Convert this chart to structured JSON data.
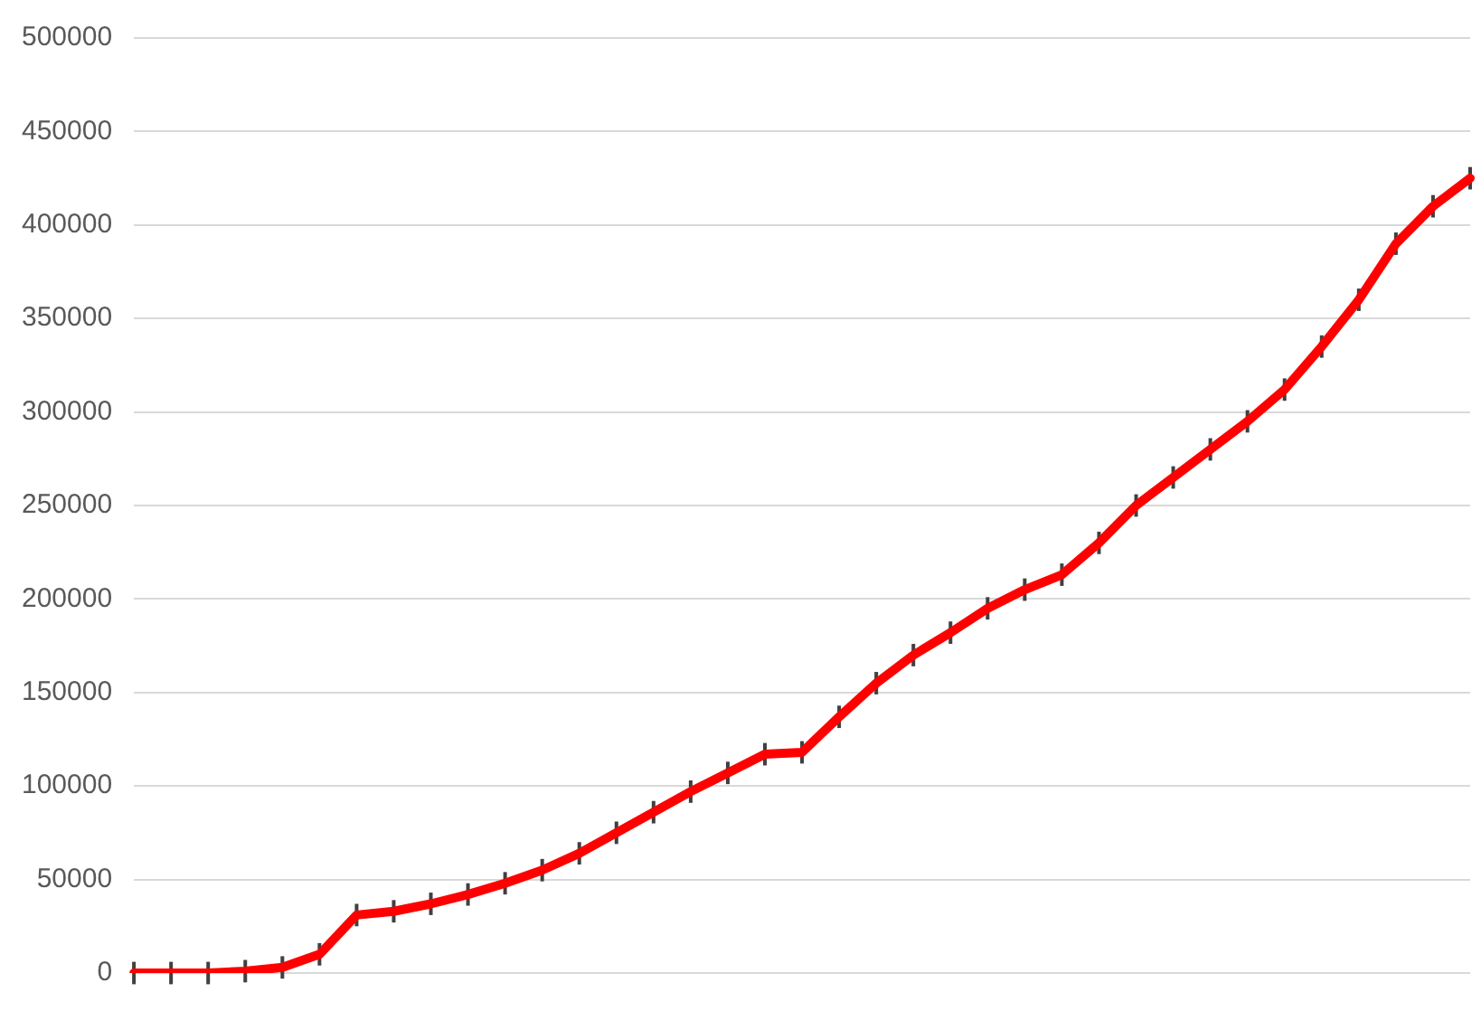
{
  "chart_data": {
    "type": "line",
    "categories": [
      null,
      null,
      null,
      null,
      null,
      null,
      null,
      null,
      null,
      null,
      null,
      null,
      null,
      null,
      null,
      null,
      null,
      null,
      null,
      null,
      null,
      null,
      null,
      null,
      null,
      null,
      null,
      null,
      null,
      null,
      null,
      null,
      null,
      null,
      null,
      null,
      null
    ],
    "series": [
      {
        "color": "#ff0000",
        "values": [
          0,
          0,
          0,
          1000,
          3000,
          10000,
          31000,
          33000,
          37000,
          42000,
          48000,
          55000,
          64000,
          75000,
          86000,
          97000,
          107000,
          117000,
          118000,
          137000,
          155000,
          170000,
          182000,
          195000,
          205000,
          213000,
          230000,
          250000,
          265000,
          280000,
          295000,
          312000,
          335000,
          360000,
          390000,
          410000,
          425000
        ],
        "errors": [
          6000,
          6000,
          6000,
          6000,
          6000,
          6000,
          6000,
          6000,
          6000,
          6000,
          6000,
          6000,
          6000,
          6000,
          6000,
          6000,
          6000,
          6000,
          6000,
          6000,
          6000,
          6000,
          6000,
          6000,
          6000,
          6000,
          6000,
          6000,
          6000,
          6000,
          6000,
          6000,
          6000,
          6000,
          6000,
          6000,
          6000
        ]
      }
    ],
    "ylim": [
      0,
      500000
    ],
    "yticks": [
      0,
      50000,
      100000,
      150000,
      200000,
      250000,
      300000,
      350000,
      400000,
      450000,
      500000
    ],
    "grid": "y",
    "line_style": "solid",
    "tick_labels": "y"
  }
}
